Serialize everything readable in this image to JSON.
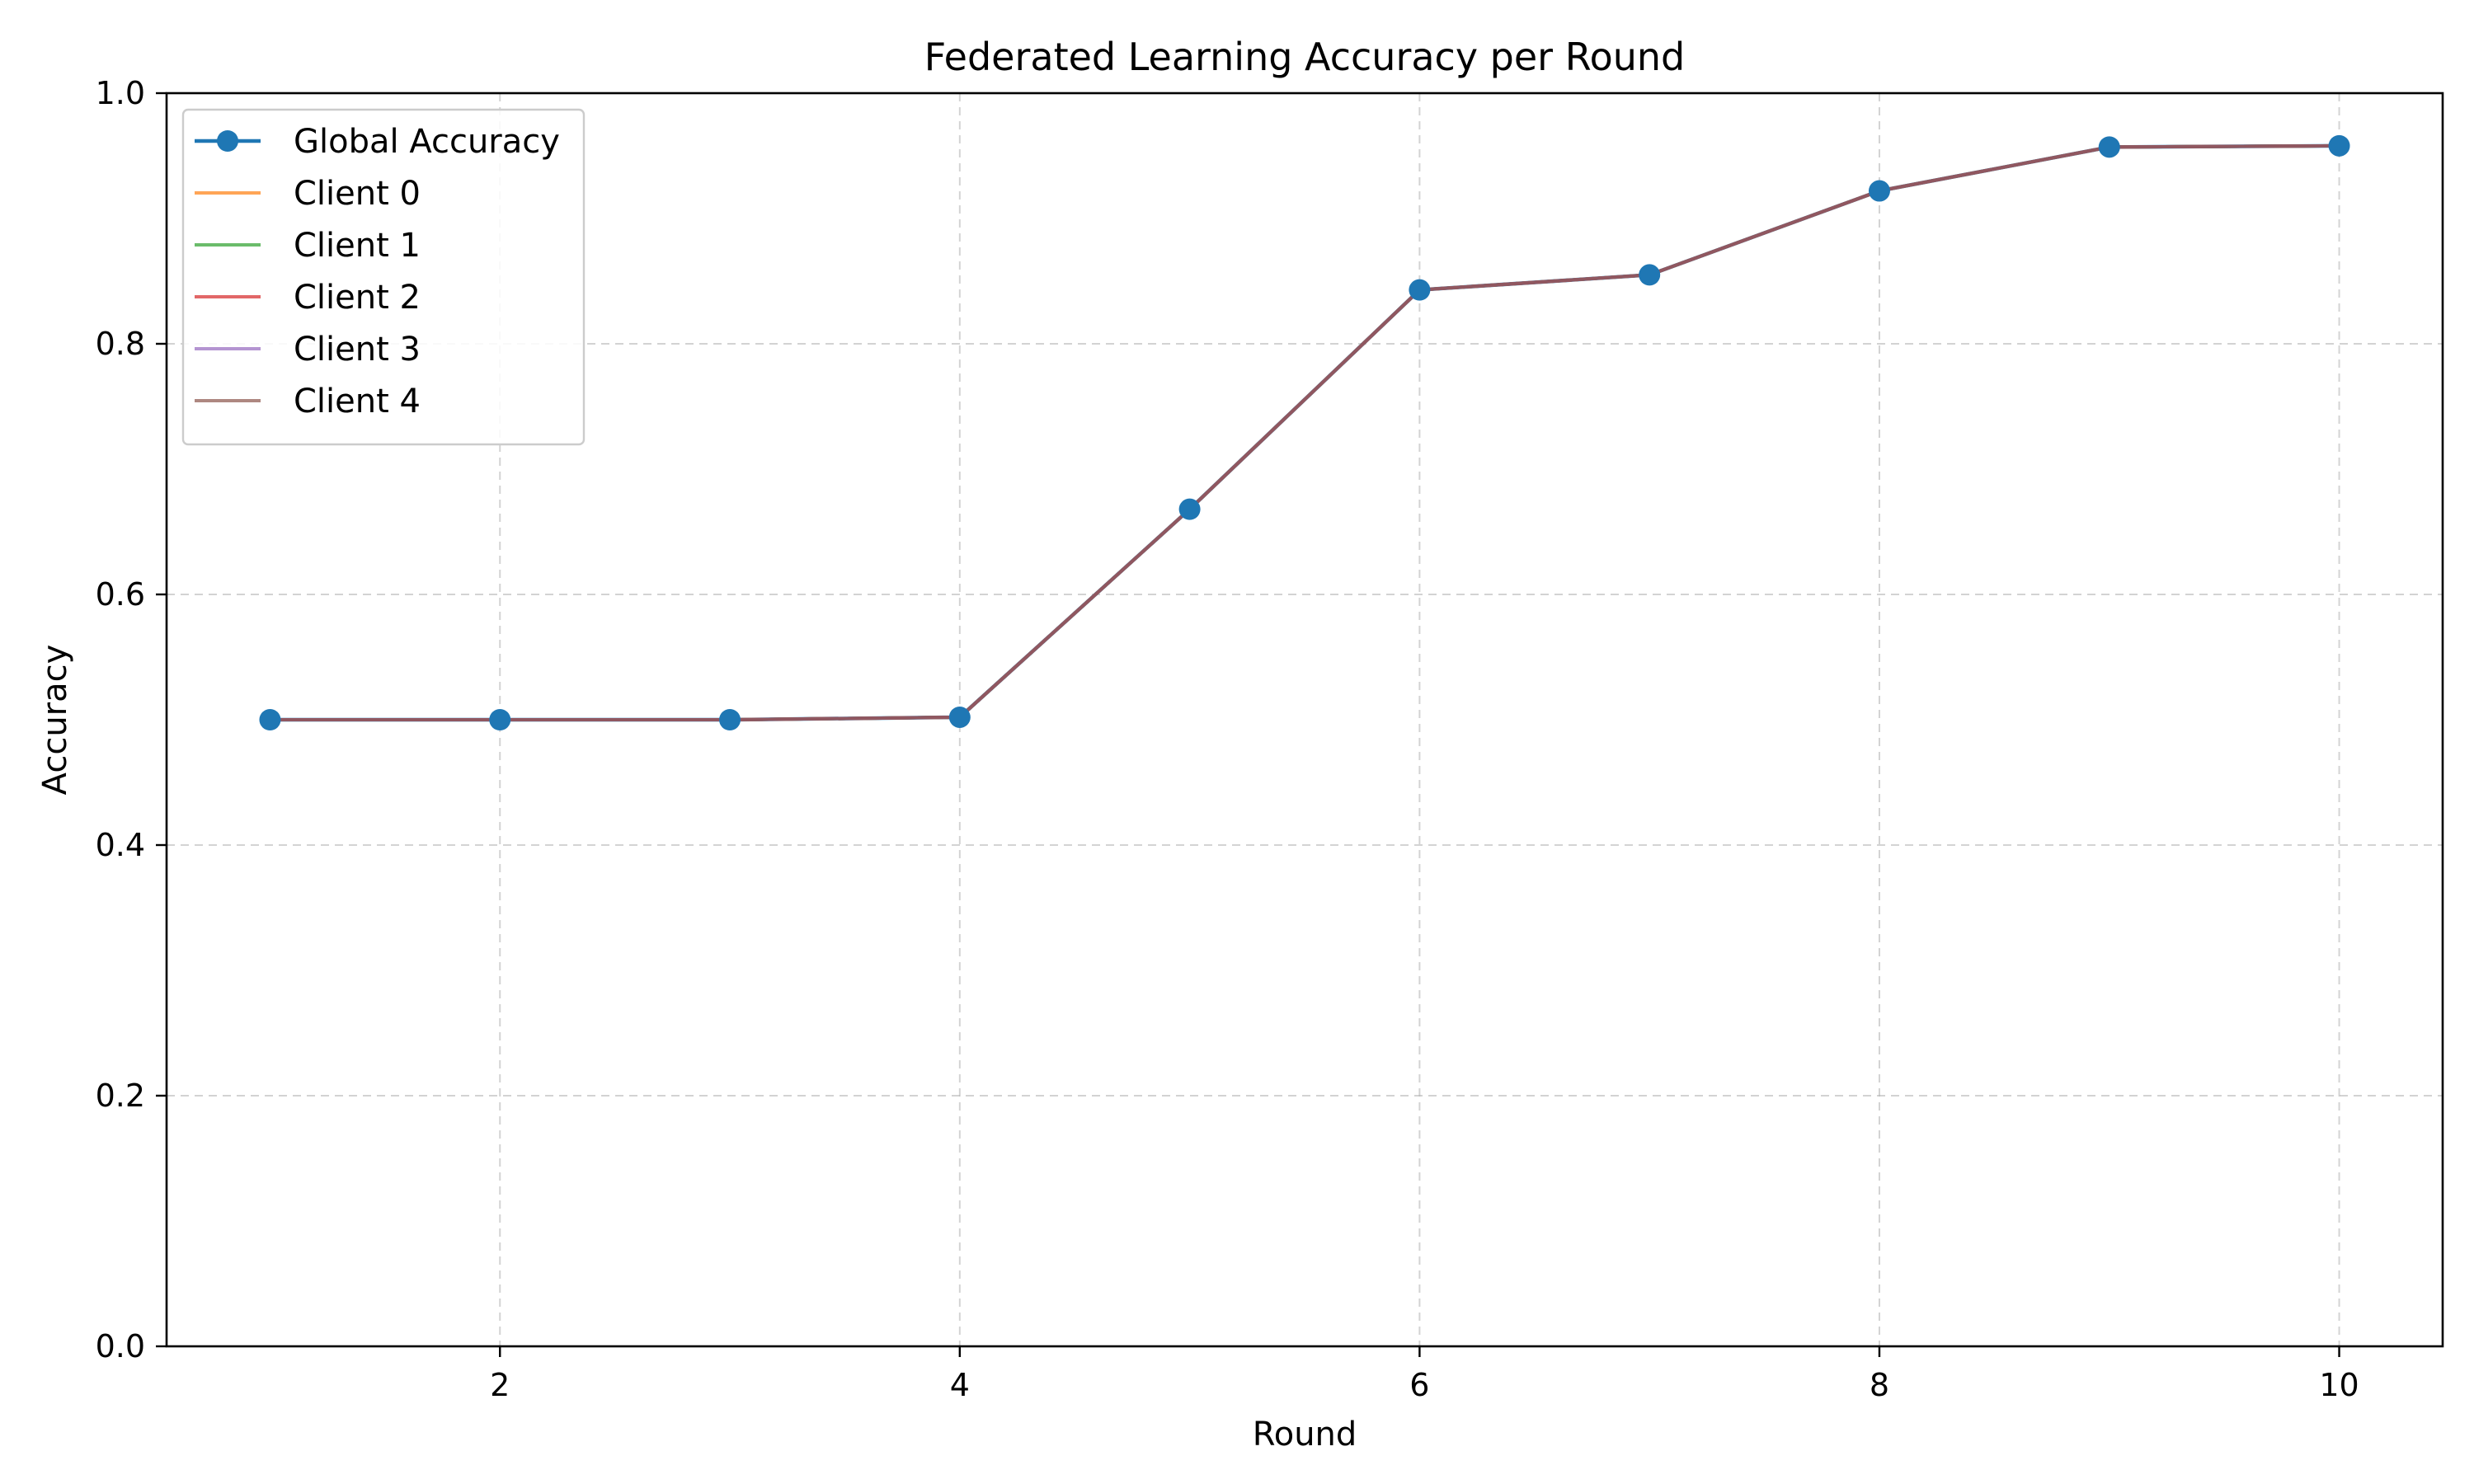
{
  "chart_data": {
    "type": "line",
    "title": "Federated Learning Accuracy per Round",
    "xlabel": "Round",
    "ylabel": "Accuracy",
    "xlim": [
      0.55,
      10.45
    ],
    "ylim": [
      0.0,
      1.0
    ],
    "xticks": [
      2,
      4,
      6,
      8,
      10
    ],
    "yticks": [
      0.0,
      0.2,
      0.4,
      0.6,
      0.8,
      1.0
    ],
    "xtick_labels": [
      "2",
      "4",
      "6",
      "8",
      "10"
    ],
    "ytick_labels": [
      "0.0",
      "0.2",
      "0.4",
      "0.6",
      "0.8",
      "1.0"
    ],
    "grid": true,
    "legend_position": "top-left",
    "x": [
      1,
      2,
      3,
      4,
      5,
      6,
      7,
      8,
      9,
      10
    ],
    "series": [
      {
        "name": "Global Accuracy",
        "color": "#1f77b4",
        "marker": "circle",
        "values": [
          0.5,
          0.5,
          0.5,
          0.502,
          0.668,
          0.843,
          0.855,
          0.922,
          0.957,
          0.958
        ]
      },
      {
        "name": "Client 0",
        "color": "#ff7f0e",
        "values": [
          0.5,
          0.5,
          0.5,
          0.502,
          0.668,
          0.843,
          0.855,
          0.922,
          0.957,
          0.958
        ]
      },
      {
        "name": "Client 1",
        "color": "#2ca02c",
        "values": [
          0.5,
          0.5,
          0.5,
          0.502,
          0.668,
          0.843,
          0.855,
          0.922,
          0.957,
          0.958
        ]
      },
      {
        "name": "Client 2",
        "color": "#d62728",
        "values": [
          0.5,
          0.5,
          0.5,
          0.502,
          0.668,
          0.843,
          0.855,
          0.922,
          0.957,
          0.958
        ]
      },
      {
        "name": "Client 3",
        "color": "#9467bd",
        "values": [
          0.5,
          0.5,
          0.5,
          0.502,
          0.668,
          0.843,
          0.855,
          0.922,
          0.957,
          0.958
        ]
      },
      {
        "name": "Client 4",
        "color": "#8c564b",
        "values": [
          0.5,
          0.5,
          0.5,
          0.502,
          0.668,
          0.843,
          0.855,
          0.922,
          0.957,
          0.958
        ]
      }
    ]
  }
}
